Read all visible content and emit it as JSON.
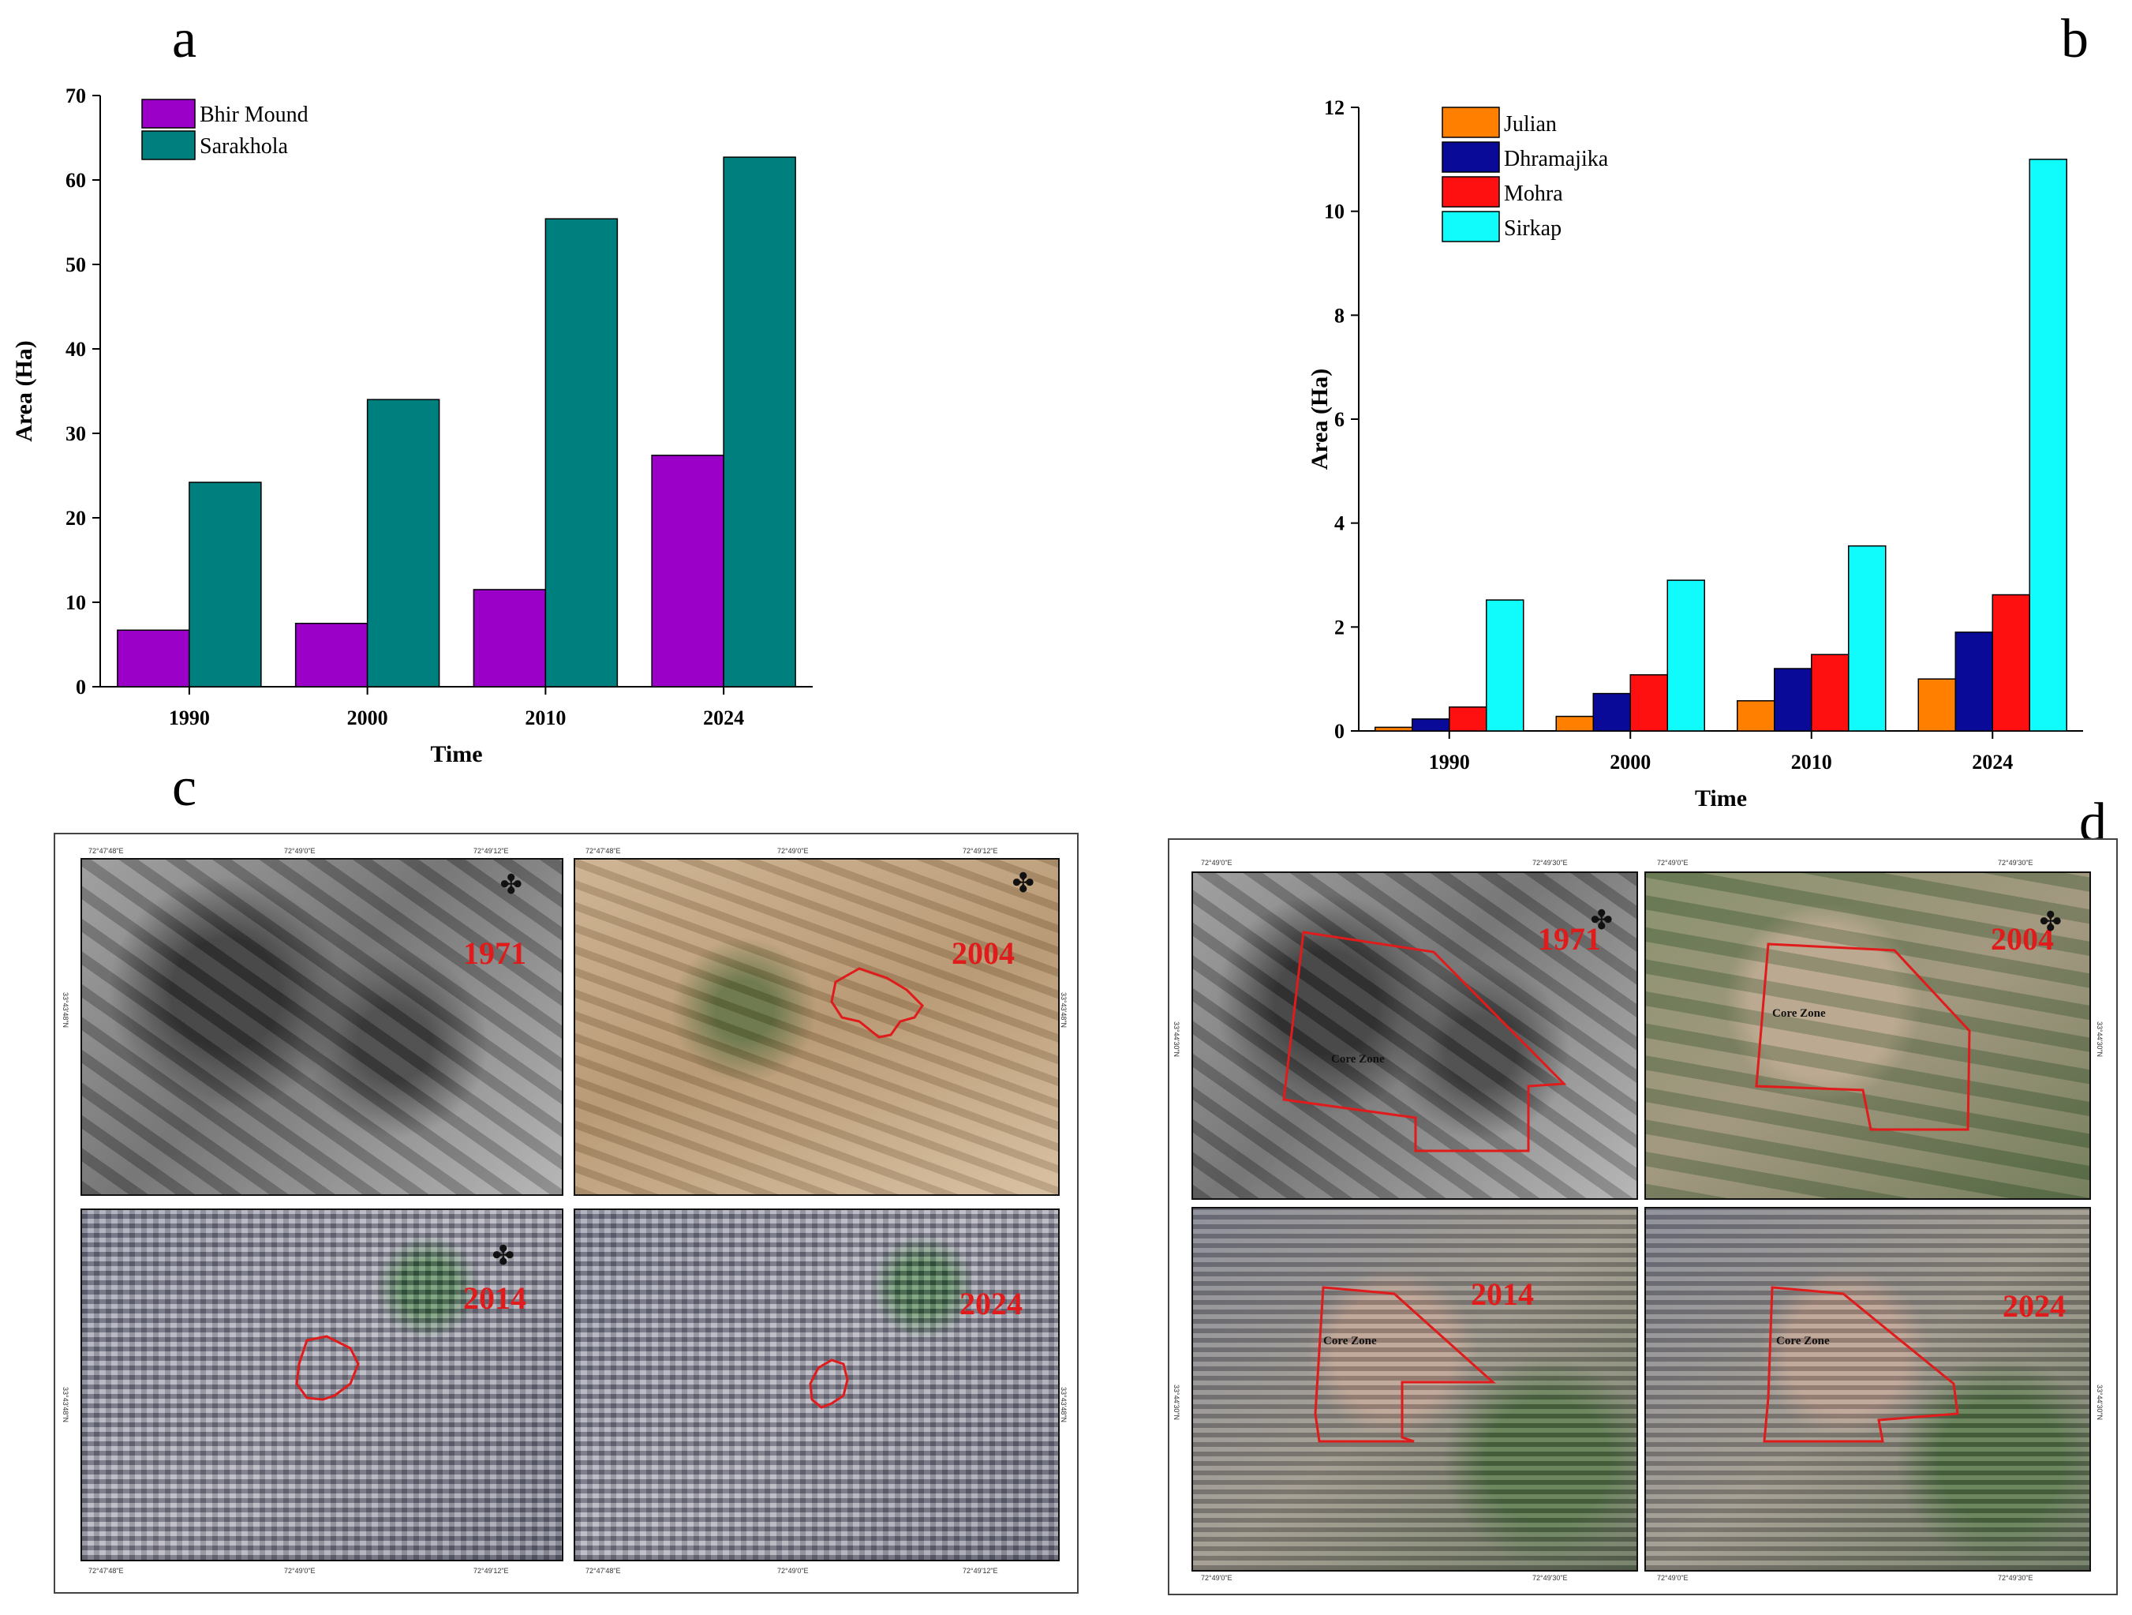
{
  "panels": {
    "a": "a",
    "b": "b",
    "c": "c",
    "d": "d"
  },
  "chart_data": [
    {
      "id": "a",
      "type": "bar",
      "title": "",
      "xlabel": "Time",
      "ylabel": "Area (Ha)",
      "categories": [
        "1990",
        "2000",
        "2010",
        "2024"
      ],
      "ylim": [
        0,
        70
      ],
      "yticks": [
        0,
        10,
        20,
        30,
        40,
        50,
        60,
        70
      ],
      "legend_position": "top-left",
      "series": [
        {
          "name": "Bhir Mound",
          "color": "#9b00c8",
          "values": [
            6.7,
            7.5,
            11.5,
            27.4
          ]
        },
        {
          "name": "Sarakhola",
          "color": "#007f7f",
          "values": [
            24.2,
            34.0,
            55.4,
            62.7
          ]
        }
      ]
    },
    {
      "id": "b",
      "type": "bar",
      "title": "",
      "xlabel": "Time",
      "ylabel": "Area (Ha)",
      "categories": [
        "1990",
        "2000",
        "2010",
        "2024"
      ],
      "ylim": [
        0,
        12
      ],
      "yticks": [
        0,
        2,
        4,
        6,
        8,
        10,
        12
      ],
      "legend_position": "top-left",
      "series": [
        {
          "name": "Julian",
          "color": "#ff7f00",
          "values": [
            0.07,
            0.28,
            0.58,
            1.0
          ]
        },
        {
          "name": "Dhramajika",
          "color": "#0a0a99",
          "values": [
            0.23,
            0.72,
            1.2,
            1.9
          ]
        },
        {
          "name": "Mohra",
          "color": "#ff1010",
          "values": [
            0.46,
            1.08,
            1.47,
            2.62
          ]
        },
        {
          "name": "Sirkap",
          "color": "#10fbfb",
          "values": [
            2.52,
            2.9,
            3.56,
            11.0
          ]
        }
      ]
    }
  ],
  "maps": {
    "c": {
      "tiles": [
        {
          "year": "1971",
          "style": "grey"
        },
        {
          "year": "2004",
          "style": "desert"
        },
        {
          "year": "2014",
          "style": "urban"
        },
        {
          "year": "2024",
          "style": "urban"
        }
      ],
      "coords_top": [
        "72°47'48\"E",
        "72°49'0\"E",
        "72°49'12\"E"
      ],
      "coords_top_right": [
        "72°47'48\"E",
        "72°49'0\"E",
        "72°49'12\"E"
      ],
      "coords_bottom": [
        "72°47'48\"E",
        "72°49'0\"E",
        "72°49'12\"E"
      ],
      "coords_bottom_right": [
        "72°47'48\"E",
        "72°49'0\"E",
        "72°49'12\"E"
      ],
      "coords_side": "33°43'48\"N"
    },
    "d": {
      "tiles": [
        {
          "year": "1971",
          "style": "grey",
          "zone": "Core Zone"
        },
        {
          "year": "2004",
          "style": "field",
          "zone": "Core Zone"
        },
        {
          "year": "2014",
          "style": "mixed",
          "zone": "Core Zone"
        },
        {
          "year": "2024",
          "style": "mixed",
          "zone": "Core Zone"
        }
      ],
      "coords_top": [
        "72°49'0\"E",
        "72°49'30\"E"
      ],
      "coords_top_right": [
        "72°49'0\"E",
        "72°49'30\"E"
      ],
      "coords_bottom": [
        "72°49'0\"E",
        "72°49'30\"E"
      ],
      "coords_bottom_right": [
        "72°49'0\"E",
        "72°49'30\"E"
      ],
      "coords_side": "33°44'30\"N"
    }
  }
}
